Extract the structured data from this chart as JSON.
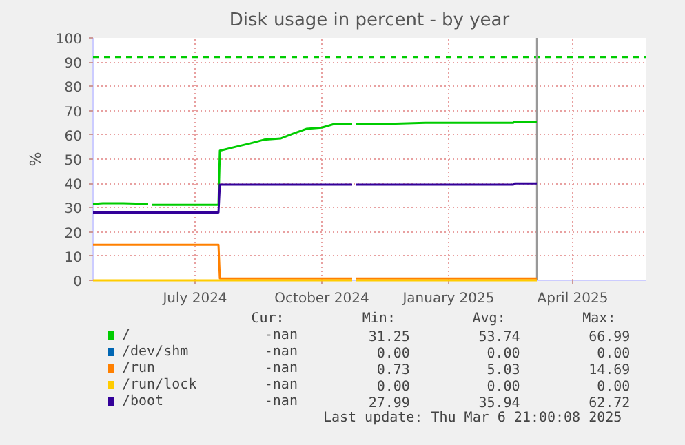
{
  "chart_data": {
    "type": "line",
    "title": "Disk usage in percent - by year",
    "ylabel": "%",
    "x": [
      "2024-04-18",
      "2024-04-25",
      "2024-05-10",
      "2024-05-28",
      "2024-05-29",
      "2024-05-31",
      "2024-06-15",
      "2024-07-01",
      "2024-07-18",
      "2024-07-19",
      "2024-08-01",
      "2024-08-10",
      "2024-08-20",
      "2024-09-01",
      "2024-09-10",
      "2024-09-20",
      "2024-10-01",
      "2024-10-10",
      "2024-10-23",
      "2024-10-24",
      "2024-10-26",
      "2024-11-15",
      "2024-12-15",
      "2025-01-15",
      "2025-02-17",
      "2025-02-18",
      "2025-03-06"
    ],
    "series": [
      {
        "name": "/",
        "color": "#00cc00",
        "values": [
          31.5,
          31.8,
          31.8,
          31.5,
          null,
          31.2,
          31.2,
          31.2,
          31.2,
          53.5,
          55.3,
          56.5,
          58,
          58.5,
          60.5,
          62.5,
          63,
          64.5,
          64.5,
          null,
          64.5,
          64.5,
          65,
          65,
          65,
          65.5,
          65.5
        ]
      },
      {
        "name": "/dev/shm",
        "color": "#0066b3",
        "values": [
          null,
          null,
          null,
          null,
          null,
          null,
          null,
          null,
          null,
          null,
          null,
          null,
          null,
          null,
          null,
          null,
          null,
          null,
          null,
          null,
          null,
          null,
          null,
          null,
          null,
          null,
          null
        ]
      },
      {
        "name": "/run",
        "color": "#ff8000",
        "values": [
          14.7,
          14.7,
          14.7,
          14.7,
          14.7,
          14.7,
          14.7,
          14.7,
          14.7,
          0.8,
          0.8,
          0.8,
          0.8,
          0.8,
          0.8,
          0.8,
          0.8,
          0.8,
          0.8,
          null,
          0.8,
          0.8,
          0.8,
          0.8,
          0.8,
          0.8,
          0.8
        ]
      },
      {
        "name": "/run/lock",
        "color": "#ffcc00",
        "values": [
          0,
          0,
          0,
          0,
          0,
          0,
          0,
          0,
          0,
          0,
          0,
          0,
          0,
          0,
          0,
          0,
          0,
          0,
          0,
          null,
          0,
          0,
          0,
          0,
          0,
          0,
          0
        ]
      },
      {
        "name": "/boot",
        "color": "#330099",
        "values": [
          28,
          28,
          28,
          28,
          28,
          28,
          28,
          28,
          28,
          39.5,
          39.5,
          39.5,
          39.5,
          39.5,
          39.5,
          39.5,
          39.5,
          39.5,
          39.5,
          null,
          39.5,
          39.5,
          39.5,
          39.5,
          39.5,
          40,
          40
        ]
      }
    ],
    "xlim": [
      "2024-04-18",
      "2025-05-24"
    ],
    "xticks": [
      {
        "value": "2024-07-01",
        "label": "July 2024"
      },
      {
        "value": "2024-10-01",
        "label": "October 2024"
      },
      {
        "value": "2025-01-01",
        "label": "January 2025"
      },
      {
        "value": "2025-04-01",
        "label": "April 2025"
      }
    ],
    "ylim": [
      0,
      100
    ],
    "yticks": [
      0,
      10,
      20,
      30,
      40,
      50,
      60,
      70,
      80,
      90,
      100
    ],
    "ref_lines": [
      {
        "axis": "y",
        "value": 92,
        "color": "#00cc00",
        "line_style": "dashed"
      },
      {
        "axis": "x",
        "value": "2025-03-06",
        "color": "#999999",
        "line_style": "solid"
      }
    ],
    "grid": true,
    "legend": "bottom",
    "line_style": "solid",
    "marker": "none",
    "annotations": [
      "Cur:",
      "Min:",
      "Avg:",
      "Max:",
      "-nan",
      "31.25",
      "53.74",
      "66.99",
      "-nan",
      "0.00",
      "0.00",
      "0.00",
      "-nan",
      "0.73",
      "5.03",
      "14.69",
      "-nan",
      "0.00",
      "0.00",
      "0.00",
      "-nan",
      "27.99",
      "35.94",
      "62.72",
      "Last update: Thu Mar  6 21:00:08 2025"
    ]
  }
}
